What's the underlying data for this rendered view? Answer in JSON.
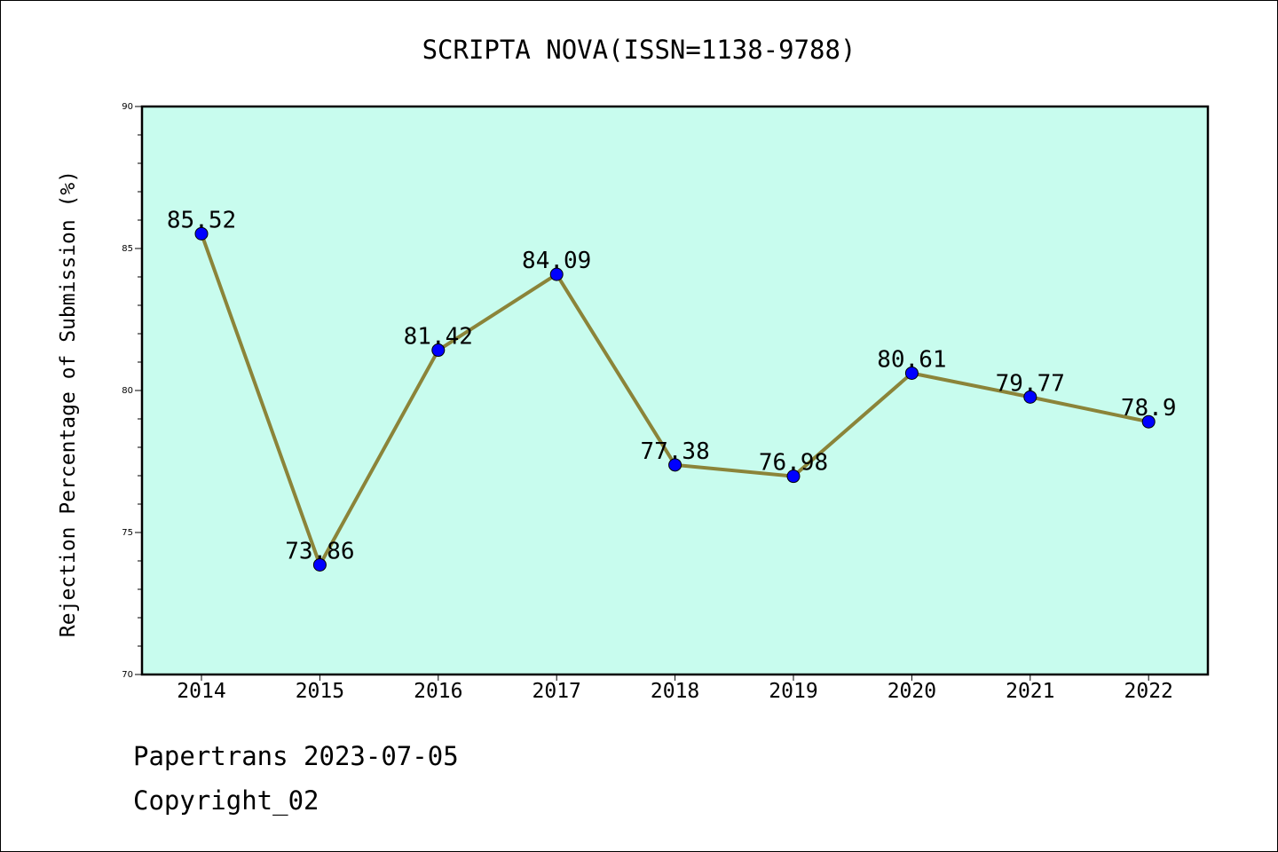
{
  "chart_data": {
    "type": "line",
    "title": "SCRIPTA NOVA(ISSN=1138-9788)",
    "ylabel": "Rejection Percentage of Submission (%)",
    "xlabel": "",
    "categories": [
      "2014",
      "2015",
      "2016",
      "2017",
      "2018",
      "2019",
      "2020",
      "2021",
      "2022"
    ],
    "series": [
      {
        "values": [
          85.52,
          73.86,
          81.42,
          84.09,
          77.38,
          76.98,
          80.61,
          79.77,
          78.9
        ],
        "labels": [
          "85.52",
          "73.86",
          "81.42",
          "84.09",
          "77.38",
          "76.98",
          "80.61",
          "79.77",
          "78.9"
        ]
      }
    ],
    "ylim": [
      70,
      90
    ],
    "yticks": [
      "70",
      "75",
      "80",
      "85",
      "90"
    ],
    "grid": false,
    "colors": {
      "plot_background": "#c8fcee",
      "line": "#8b8439",
      "marker": "#0000ff"
    }
  },
  "footer": {
    "credit": "Papertrans 2023-07-05",
    "copyright": "Copyright_02"
  }
}
